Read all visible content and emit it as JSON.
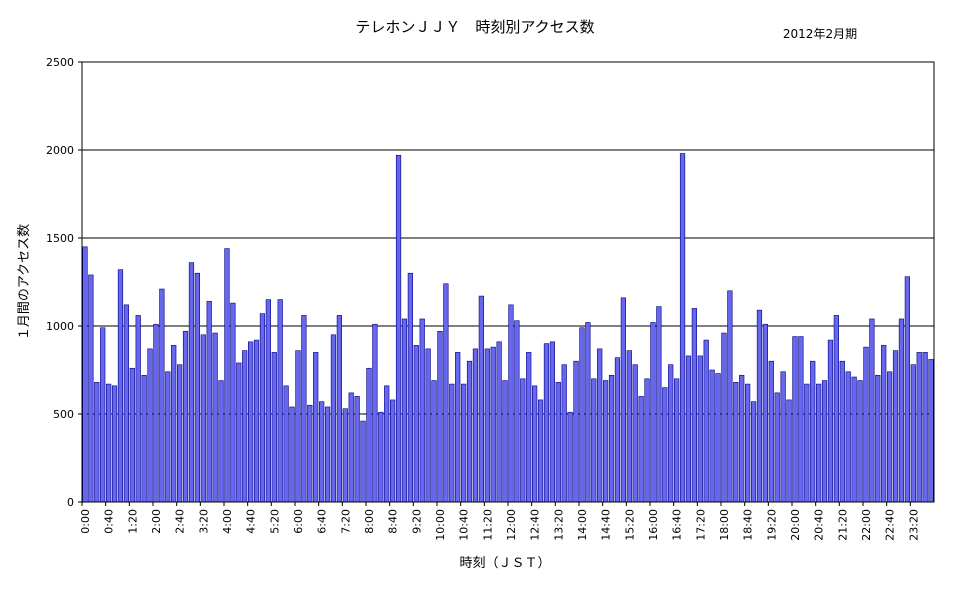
{
  "chart_data": {
    "type": "bar",
    "title": "テレホンＪＪＹ　時刻別アクセス数",
    "period": "2012年2月期",
    "xlabel": "時刻（ＪＳＴ）",
    "ylabel": "１月間のアクセス数",
    "ylim": [
      0,
      2500
    ],
    "yticks": [
      0,
      500,
      1000,
      1500,
      2000,
      2500
    ],
    "grid": true,
    "legend": "none",
    "bar_color": "#6666ee",
    "bar_edge_color": "#000080",
    "x_tick_labels": [
      "0:00",
      "0:40",
      "1:20",
      "2:00",
      "2:40",
      "3:20",
      "4:00",
      "4:40",
      "5:20",
      "6:00",
      "6:40",
      "7:20",
      "8:00",
      "8:40",
      "9:20",
      "10:00",
      "10:40",
      "11:20",
      "12:00",
      "12:40",
      "13:20",
      "14:00",
      "14:40",
      "15:20",
      "16:00",
      "16:40",
      "17:20",
      "18:00",
      "18:40",
      "19:20",
      "20:00",
      "20:40",
      "21:20",
      "22:00",
      "22:40",
      "23:20"
    ],
    "interval_minutes": 10,
    "values": [
      1450,
      1290,
      680,
      990,
      670,
      660,
      1320,
      1120,
      760,
      1060,
      720,
      870,
      1010,
      1210,
      740,
      890,
      780,
      970,
      1360,
      1300,
      950,
      1140,
      960,
      690,
      1440,
      1130,
      790,
      860,
      910,
      920,
      1070,
      1150,
      850,
      1150,
      660,
      540,
      860,
      1060,
      550,
      850,
      570,
      540,
      950,
      1060,
      530,
      620,
      600,
      460,
      760,
      1010,
      510,
      660,
      580,
      1970,
      1040,
      1300,
      890,
      1040,
      870,
      690,
      970,
      1240,
      670,
      850,
      670,
      800,
      870,
      1170,
      870,
      880,
      910,
      690,
      1120,
      1030,
      700,
      850,
      660,
      580,
      900,
      910,
      680,
      780,
      510,
      800,
      990,
      1020,
      700,
      870,
      690,
      720,
      820,
      1160,
      860,
      780,
      600,
      700,
      1020,
      1110,
      650,
      780,
      700,
      1980,
      830,
      1100,
      830,
      920,
      750,
      730,
      960,
      1200,
      680,
      720,
      670,
      570,
      1090,
      1010,
      800,
      620,
      740,
      580,
      940,
      940,
      670,
      800,
      670,
      690,
      920,
      1060,
      800,
      740,
      710,
      690,
      880,
      1040,
      720,
      890,
      740,
      860,
      1040,
      1280,
      780,
      850,
      850,
      810
    ]
  }
}
